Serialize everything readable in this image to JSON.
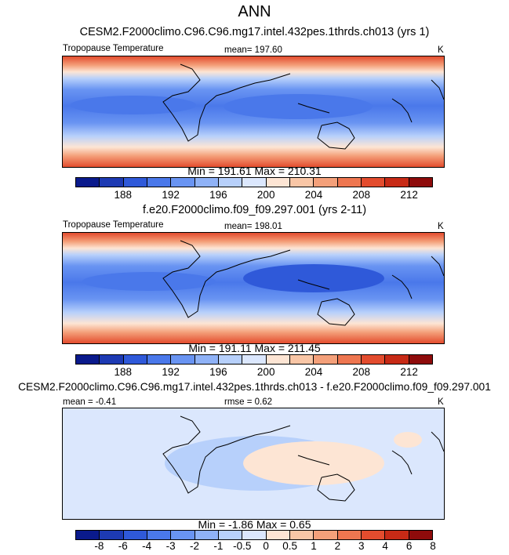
{
  "main_title": "ANN",
  "colors": {
    "abs": [
      "#0a1a8c",
      "#1d3ab3",
      "#2f59d9",
      "#4a78ea",
      "#6994f2",
      "#8fb2f7",
      "#b7d0fb",
      "#dbe7fd",
      "#fde5d4",
      "#f9c6a6",
      "#f4a07a",
      "#ee7650",
      "#e34c2e",
      "#c72a16",
      "#8e0b0b"
    ],
    "diff": [
      "#0a1a8c",
      "#1d3ab3",
      "#2f59d9",
      "#4a78ea",
      "#6994f2",
      "#8fb2f7",
      "#b7d0fb",
      "#dbe7fd",
      "#fde5d4",
      "#f9c6a6",
      "#f4a07a",
      "#ee7650",
      "#e34c2e",
      "#c72a16",
      "#8e0b0b"
    ]
  },
  "chart_data": [
    {
      "type": "heatmap",
      "title": "CESM2.F2000climo.C96.C96.mg17.intel.432pes.1thrds.ch013 (yrs 1)",
      "left_label": "Tropopause Temperature",
      "center_label": "mean= 197.60",
      "right_label": "K",
      "minmax": "Min = 191.61 Max = 210.31",
      "colorbar_ticks": [
        "188",
        "192",
        "196",
        "200",
        "204",
        "208",
        "212"
      ],
      "colorbar_levels": [
        186,
        188,
        190,
        192,
        194,
        196,
        198,
        200,
        202,
        204,
        206,
        208,
        210,
        212,
        214
      ]
    },
    {
      "type": "heatmap",
      "title": "f.e20.F2000climo.f09_f09.297.001 (yrs 2-11)",
      "left_label": "Tropopause Temperature",
      "center_label": "mean= 198.01",
      "right_label": "K",
      "minmax": "Min = 191.11 Max = 211.45",
      "colorbar_ticks": [
        "188",
        "192",
        "196",
        "200",
        "204",
        "208",
        "212"
      ],
      "colorbar_levels": [
        186,
        188,
        190,
        192,
        194,
        196,
        198,
        200,
        202,
        204,
        206,
        208,
        210,
        212,
        214
      ]
    },
    {
      "type": "heatmap",
      "title": "CESM2.F2000climo.C96.C96.mg17.intel.432pes.1thrds.ch013 - f.e20.F2000climo.f09_f09.297.001",
      "left_label": "mean =  -0.41",
      "center_label": "rmse =   0.62",
      "right_label": "K",
      "minmax": "Min =  -1.86 Max =   0.65",
      "colorbar_ticks": [
        "-8",
        "-6",
        "-4",
        "-3",
        "-2",
        "-1",
        "-0.5",
        "0",
        "0.5",
        "1",
        "2",
        "3",
        "4",
        "6",
        "8"
      ],
      "colorbar_levels": [
        -8,
        -6,
        -4,
        -3,
        -2,
        -1,
        -0.5,
        0,
        0.5,
        1,
        2,
        3,
        4,
        6,
        8
      ]
    }
  ]
}
